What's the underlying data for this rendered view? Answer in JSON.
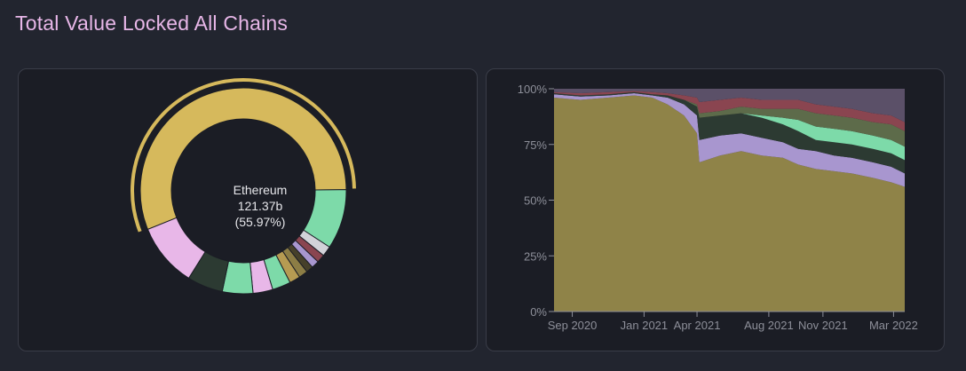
{
  "page": {
    "title": "Total Value Locked All Chains"
  },
  "donut": {
    "center_name": "Ethereum",
    "center_value": "121.37b",
    "center_pct": "(55.97%)"
  },
  "chart_data": [
    {
      "type": "pie",
      "variant": "donut",
      "highlighted": "Ethereum",
      "slices": [
        {
          "name": "Ethereum",
          "percent": 55.97,
          "color": "#d6b95c"
        },
        {
          "name": "",
          "percent": 9.4,
          "color": "#7ddaa9"
        },
        {
          "name": "",
          "percent": 1.6,
          "color": "#d2d2d8"
        },
        {
          "name": "",
          "percent": 1.3,
          "color": "#8a4550"
        },
        {
          "name": "",
          "percent": 1.2,
          "color": "#a896cf"
        },
        {
          "name": "",
          "percent": 1.1,
          "color": "#46402a"
        },
        {
          "name": "",
          "percent": 1.4,
          "color": "#8c7d45"
        },
        {
          "name": "",
          "percent": 1.7,
          "color": "#b69b52"
        },
        {
          "name": "",
          "percent": 2.9,
          "color": "#7ddaa9"
        },
        {
          "name": "",
          "percent": 3.1,
          "color": "#e8b7e8"
        },
        {
          "name": "",
          "percent": 4.8,
          "color": "#7ddaa9"
        },
        {
          "name": "",
          "percent": 5.6,
          "color": "#2c3a32"
        },
        {
          "name": "",
          "percent": 10.02,
          "color": "#e8b7e8"
        }
      ]
    },
    {
      "type": "area",
      "stacked": true,
      "normalized": true,
      "ylim": [
        0,
        100
      ],
      "y_ticks": [
        "0%",
        "25%",
        "50%",
        "75%",
        "100%"
      ],
      "x_ticks": [
        "Sep 2020",
        "Jan 2021",
        "Apr 2021",
        "Aug 2021",
        "Nov 2021",
        "Mar 2022"
      ],
      "x_range": [
        "2020-08-01",
        "2022-03-20"
      ],
      "x": [
        "2020-08-01",
        "2020-09-15",
        "2020-11-01",
        "2020-12-15",
        "2021-01-15",
        "2021-02-10",
        "2021-03-10",
        "2021-04-01",
        "2021-04-05",
        "2021-05-10",
        "2021-06-15",
        "2021-07-20",
        "2021-08-25",
        "2021-09-20",
        "2021-10-20",
        "2021-11-20",
        "2021-12-20",
        "2022-01-25",
        "2022-02-25",
        "2022-03-20"
      ],
      "series": [
        {
          "name": "Ethereum",
          "color": "#8f8348",
          "values": [
            96,
            95,
            96,
            97,
            96,
            93,
            88,
            80,
            67,
            70,
            72,
            70,
            69,
            66,
            64,
            63,
            62,
            60,
            58,
            56
          ]
        },
        {
          "name": "",
          "color": "#a896cf",
          "values": [
            1.5,
            1.5,
            1,
            1,
            1,
            3,
            5,
            8,
            10,
            9,
            8,
            8,
            7,
            7,
            8,
            7,
            7,
            7,
            7,
            6
          ]
        },
        {
          "name": "",
          "color": "#2c3a32",
          "values": [
            0.5,
            0.5,
            0.5,
            0.5,
            0.5,
            1,
            2,
            4,
            10,
            9,
            9,
            9,
            8,
            8,
            5,
            6,
            6,
            6,
            6,
            6
          ]
        },
        {
          "name": "",
          "color": "#7ddaa9",
          "values": [
            0,
            0,
            0,
            0,
            0,
            0,
            0,
            0,
            0,
            0,
            0,
            1,
            3,
            5,
            6,
            6,
            6,
            6,
            6,
            6
          ]
        },
        {
          "name": "",
          "color": "#5d6b4a",
          "values": [
            0,
            0,
            0,
            0,
            0,
            0,
            0,
            1,
            2,
            2,
            3,
            3,
            4,
            5,
            6,
            6,
            6,
            6,
            7,
            7
          ]
        },
        {
          "name": "",
          "color": "#8a4550",
          "values": [
            0.5,
            1,
            1,
            0.5,
            1,
            1,
            2,
            3,
            5,
            5,
            4,
            4,
            4,
            4,
            4,
            4,
            4,
            4,
            4,
            4
          ]
        },
        {
          "name": "",
          "color": "#5b5068",
          "values": [
            1.5,
            2,
            1.5,
            1,
            1.5,
            2,
            3,
            4,
            6,
            5,
            4,
            5,
            5,
            5,
            7,
            8,
            9,
            11,
            12,
            15
          ]
        }
      ]
    }
  ]
}
